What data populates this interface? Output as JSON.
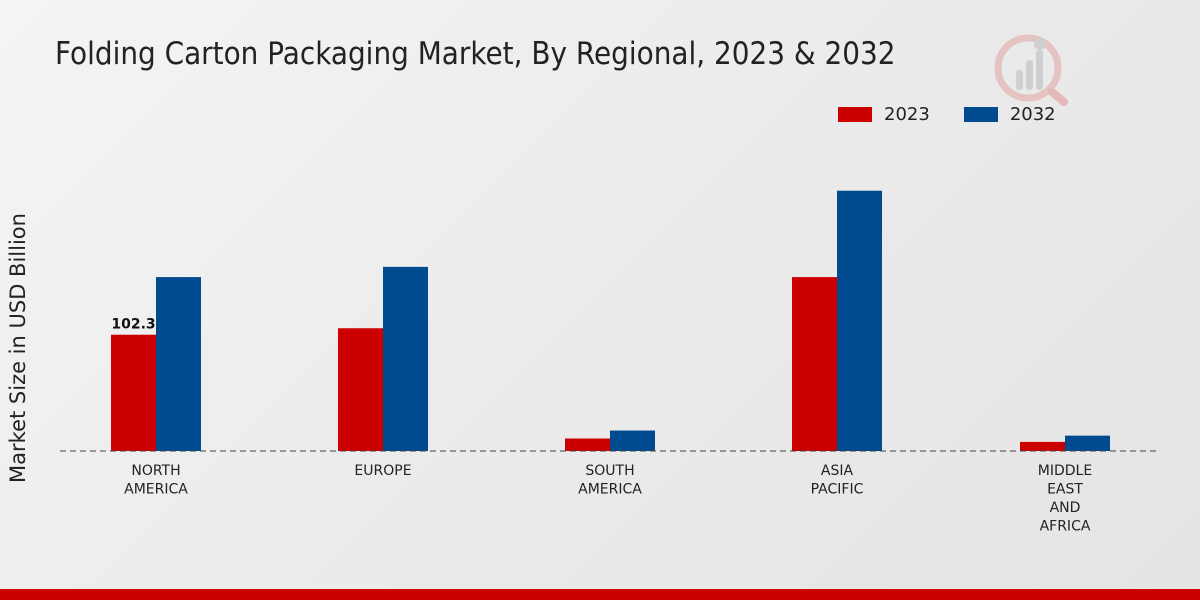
{
  "chart_data": {
    "type": "bar",
    "title": "Folding Carton Packaging Market, By Regional, 2023 & 2032",
    "ylabel": "Market Size in USD Billion",
    "xlabel": "",
    "categories": [
      [
        "NORTH",
        "AMERICA"
      ],
      [
        "EUROPE"
      ],
      [
        "SOUTH",
        "AMERICA"
      ],
      [
        "ASIA",
        "PACIFIC"
      ],
      [
        "MIDDLE",
        "EAST",
        "AND",
        "AFRICA"
      ]
    ],
    "series": [
      {
        "name": "2023",
        "color": "#cc0000",
        "values": [
          102.3,
          108.0,
          11.0,
          153.0,
          8.0
        ]
      },
      {
        "name": "2032",
        "color": "#004a8f",
        "values": [
          153.0,
          162.0,
          18.0,
          229.0,
          13.5
        ]
      }
    ],
    "data_labels": [
      {
        "series": 0,
        "index": 0,
        "text": "102.3"
      }
    ],
    "ylim": [
      0,
      300
    ],
    "legend_position": "top-right",
    "grid": false
  },
  "brand": {
    "accent": "#cc0000"
  }
}
